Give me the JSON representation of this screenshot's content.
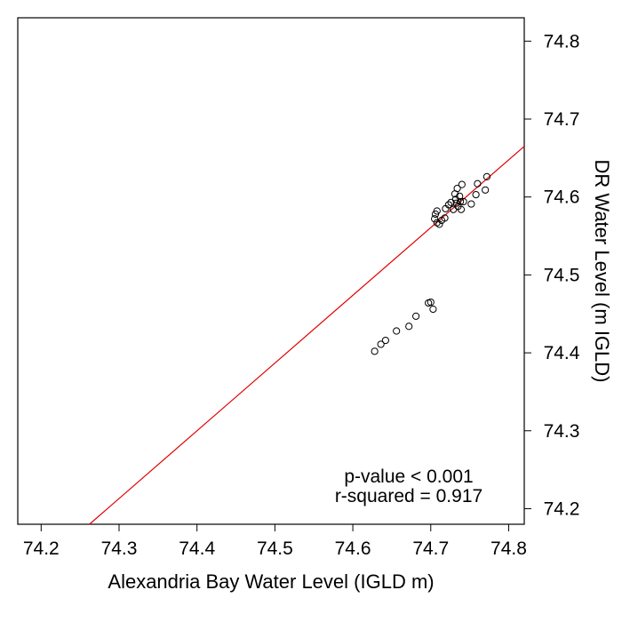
{
  "chart_data": {
    "type": "scatter",
    "xlabel": "Alexandria Bay Water Level (IGLD m)",
    "ylabel": "DR Water Level (m IGLD)",
    "xlim": [
      74.17,
      74.82
    ],
    "ylim": [
      74.18,
      74.83
    ],
    "xticks": [
      "74.2",
      "74.3",
      "74.4",
      "74.5",
      "74.6",
      "74.7",
      "74.8"
    ],
    "yticks": [
      "74.2",
      "74.3",
      "74.4",
      "74.5",
      "74.6",
      "74.7",
      "74.8"
    ],
    "y_axis_side": "right",
    "grid": false,
    "points": [
      {
        "x": 74.628,
        "y": 74.402
      },
      {
        "x": 74.636,
        "y": 74.411
      },
      {
        "x": 74.642,
        "y": 74.416
      },
      {
        "x": 74.656,
        "y": 74.428
      },
      {
        "x": 74.672,
        "y": 74.434
      },
      {
        "x": 74.681,
        "y": 74.447
      },
      {
        "x": 74.697,
        "y": 74.464
      },
      {
        "x": 74.7,
        "y": 74.465
      },
      {
        "x": 74.703,
        "y": 74.456
      },
      {
        "x": 74.705,
        "y": 74.572
      },
      {
        "x": 74.706,
        "y": 74.578
      },
      {
        "x": 74.708,
        "y": 74.567
      },
      {
        "x": 74.708,
        "y": 74.582
      },
      {
        "x": 74.711,
        "y": 74.565
      },
      {
        "x": 74.714,
        "y": 74.57
      },
      {
        "x": 74.718,
        "y": 74.573
      },
      {
        "x": 74.719,
        "y": 74.585
      },
      {
        "x": 74.723,
        "y": 74.59
      },
      {
        "x": 74.726,
        "y": 74.593
      },
      {
        "x": 74.729,
        "y": 74.584
      },
      {
        "x": 74.731,
        "y": 74.604
      },
      {
        "x": 74.732,
        "y": 74.597
      },
      {
        "x": 74.733,
        "y": 74.592
      },
      {
        "x": 74.734,
        "y": 74.611
      },
      {
        "x": 74.735,
        "y": 74.588
      },
      {
        "x": 74.737,
        "y": 74.601
      },
      {
        "x": 74.738,
        "y": 74.594
      },
      {
        "x": 74.739,
        "y": 74.584
      },
      {
        "x": 74.74,
        "y": 74.616
      },
      {
        "x": 74.742,
        "y": 74.594
      },
      {
        "x": 74.752,
        "y": 74.591
      },
      {
        "x": 74.758,
        "y": 74.603
      },
      {
        "x": 74.76,
        "y": 74.617
      },
      {
        "x": 74.77,
        "y": 74.609
      },
      {
        "x": 74.772,
        "y": 74.626
      }
    ],
    "fit_line": {
      "x": [
        74.262,
        74.82
      ],
      "y": [
        74.18,
        74.665
      ],
      "color": "#e00000"
    },
    "annotations": [
      "p-value < 0.001",
      "r-squared = 0.917"
    ],
    "point_color": "#000000"
  }
}
